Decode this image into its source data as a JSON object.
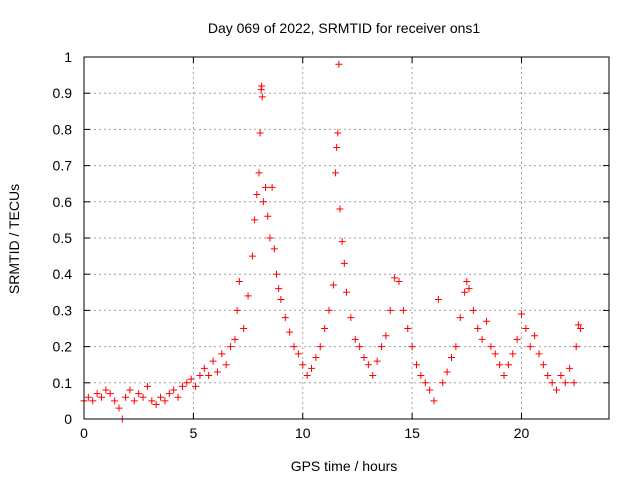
{
  "chart_data": {
    "type": "scatter",
    "title": "Day 069 of 2022, SRMTID for receiver ons1",
    "xlabel": "GPS time / hours",
    "ylabel": "SRMTID / TECUs",
    "xlim": [
      0,
      24
    ],
    "ylim": [
      0,
      1
    ],
    "xticks": [
      0,
      5,
      10,
      15,
      20
    ],
    "yticks": [
      0,
      0.1,
      0.2,
      0.3,
      0.4,
      0.5,
      0.6,
      0.7,
      0.8,
      0.9,
      1
    ],
    "grid": true,
    "marker": "+",
    "color": "#ff0000",
    "series": [
      {
        "name": "SRMTID",
        "points": [
          [
            0.0,
            0.05
          ],
          [
            0.2,
            0.06
          ],
          [
            0.4,
            0.05
          ],
          [
            0.6,
            0.07
          ],
          [
            0.8,
            0.06
          ],
          [
            1.0,
            0.08
          ],
          [
            1.2,
            0.07
          ],
          [
            1.4,
            0.05
          ],
          [
            1.6,
            0.03
          ],
          [
            1.75,
            0.0
          ],
          [
            1.9,
            0.06
          ],
          [
            2.1,
            0.08
          ],
          [
            2.3,
            0.05
          ],
          [
            2.5,
            0.07
          ],
          [
            2.7,
            0.06
          ],
          [
            2.9,
            0.09
          ],
          [
            3.1,
            0.05
          ],
          [
            3.3,
            0.04
          ],
          [
            3.5,
            0.06
          ],
          [
            3.7,
            0.05
          ],
          [
            3.9,
            0.07
          ],
          [
            4.1,
            0.08
          ],
          [
            4.3,
            0.06
          ],
          [
            4.5,
            0.09
          ],
          [
            4.7,
            0.1
          ],
          [
            4.9,
            0.11
          ],
          [
            5.1,
            0.09
          ],
          [
            5.3,
            0.12
          ],
          [
            5.5,
            0.14
          ],
          [
            5.7,
            0.12
          ],
          [
            5.9,
            0.16
          ],
          [
            6.1,
            0.13
          ],
          [
            6.3,
            0.18
          ],
          [
            6.5,
            0.15
          ],
          [
            6.7,
            0.2
          ],
          [
            6.9,
            0.22
          ],
          [
            7.0,
            0.3
          ],
          [
            7.1,
            0.38
          ],
          [
            7.3,
            0.25
          ],
          [
            7.5,
            0.34
          ],
          [
            7.7,
            0.45
          ],
          [
            7.8,
            0.55
          ],
          [
            7.9,
            0.62
          ],
          [
            8.0,
            0.68
          ],
          [
            8.05,
            0.79
          ],
          [
            8.1,
            0.91
          ],
          [
            8.12,
            0.92
          ],
          [
            8.15,
            0.89
          ],
          [
            8.2,
            0.6
          ],
          [
            8.3,
            0.64
          ],
          [
            8.4,
            0.56
          ],
          [
            8.5,
            0.5
          ],
          [
            8.6,
            0.64
          ],
          [
            8.7,
            0.47
          ],
          [
            8.8,
            0.4
          ],
          [
            8.9,
            0.36
          ],
          [
            9.0,
            0.33
          ],
          [
            9.2,
            0.28
          ],
          [
            9.4,
            0.24
          ],
          [
            9.6,
            0.2
          ],
          [
            9.8,
            0.18
          ],
          [
            10.0,
            0.15
          ],
          [
            10.2,
            0.12
          ],
          [
            10.4,
            0.14
          ],
          [
            10.6,
            0.17
          ],
          [
            10.8,
            0.2
          ],
          [
            11.0,
            0.25
          ],
          [
            11.2,
            0.3
          ],
          [
            11.4,
            0.37
          ],
          [
            11.5,
            0.68
          ],
          [
            11.55,
            0.75
          ],
          [
            11.6,
            0.79
          ],
          [
            11.65,
            0.98
          ],
          [
            11.7,
            0.58
          ],
          [
            11.8,
            0.49
          ],
          [
            11.9,
            0.43
          ],
          [
            12.0,
            0.35
          ],
          [
            12.2,
            0.28
          ],
          [
            12.4,
            0.22
          ],
          [
            12.6,
            0.2
          ],
          [
            12.8,
            0.17
          ],
          [
            13.0,
            0.15
          ],
          [
            13.2,
            0.12
          ],
          [
            13.4,
            0.16
          ],
          [
            13.6,
            0.2
          ],
          [
            13.8,
            0.23
          ],
          [
            14.0,
            0.3
          ],
          [
            14.2,
            0.39
          ],
          [
            14.4,
            0.38
          ],
          [
            14.6,
            0.3
          ],
          [
            14.8,
            0.25
          ],
          [
            15.0,
            0.2
          ],
          [
            15.2,
            0.15
          ],
          [
            15.4,
            0.12
          ],
          [
            15.6,
            0.1
          ],
          [
            15.8,
            0.08
          ],
          [
            16.0,
            0.05
          ],
          [
            16.2,
            0.33
          ],
          [
            16.4,
            0.1
          ],
          [
            16.6,
            0.13
          ],
          [
            16.8,
            0.17
          ],
          [
            17.0,
            0.2
          ],
          [
            17.2,
            0.28
          ],
          [
            17.4,
            0.35
          ],
          [
            17.5,
            0.38
          ],
          [
            17.6,
            0.36
          ],
          [
            17.8,
            0.3
          ],
          [
            18.0,
            0.25
          ],
          [
            18.2,
            0.22
          ],
          [
            18.4,
            0.27
          ],
          [
            18.6,
            0.2
          ],
          [
            18.8,
            0.18
          ],
          [
            19.0,
            0.15
          ],
          [
            19.2,
            0.12
          ],
          [
            19.4,
            0.15
          ],
          [
            19.6,
            0.18
          ],
          [
            19.8,
            0.22
          ],
          [
            20.0,
            0.29
          ],
          [
            20.2,
            0.25
          ],
          [
            20.4,
            0.2
          ],
          [
            20.6,
            0.23
          ],
          [
            20.8,
            0.18
          ],
          [
            21.0,
            0.15
          ],
          [
            21.2,
            0.12
          ],
          [
            21.4,
            0.1
          ],
          [
            21.6,
            0.08
          ],
          [
            21.8,
            0.12
          ],
          [
            22.0,
            0.1
          ],
          [
            22.2,
            0.14
          ],
          [
            22.4,
            0.1
          ],
          [
            22.5,
            0.2
          ],
          [
            22.6,
            0.26
          ],
          [
            22.7,
            0.25
          ]
        ]
      }
    ]
  }
}
